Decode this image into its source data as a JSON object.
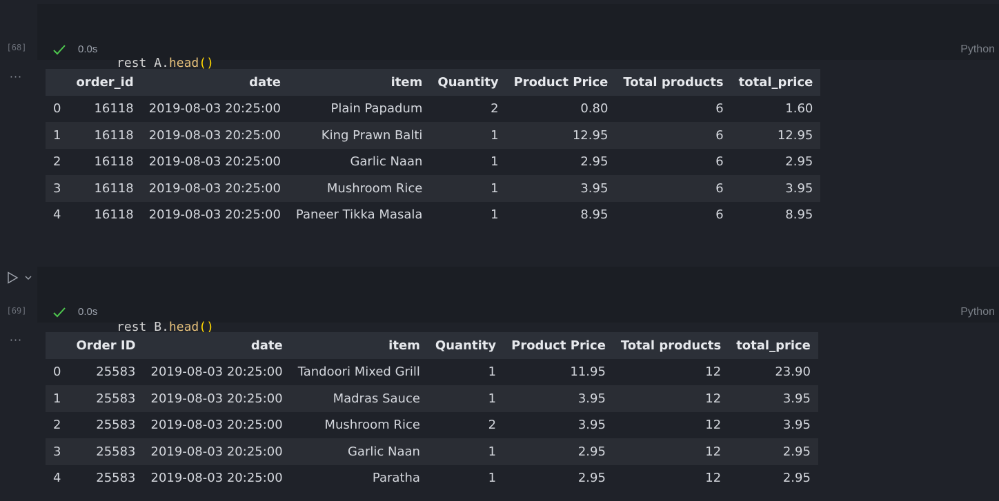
{
  "cells": [
    {
      "exec_count": "[68]",
      "code": {
        "var": "rest_A",
        "dot": ".",
        "fn": "head",
        "parens": "()"
      },
      "exec_time": "0.0s",
      "language": "Python",
      "output_more": "···",
      "table": {
        "columns": [
          "",
          "order_id",
          "date",
          "item",
          "Quantity",
          "Product Price",
          "Total products",
          "total_price"
        ],
        "rows": [
          [
            "0",
            "16118",
            "2019-08-03 20:25:00",
            "Plain Papadum",
            "2",
            "0.80",
            "6",
            "1.60"
          ],
          [
            "1",
            "16118",
            "2019-08-03 20:25:00",
            "King Prawn Balti",
            "1",
            "12.95",
            "6",
            "12.95"
          ],
          [
            "2",
            "16118",
            "2019-08-03 20:25:00",
            "Garlic Naan",
            "1",
            "2.95",
            "6",
            "2.95"
          ],
          [
            "3",
            "16118",
            "2019-08-03 20:25:00",
            "Mushroom Rice",
            "1",
            "3.95",
            "6",
            "3.95"
          ],
          [
            "4",
            "16118",
            "2019-08-03 20:25:00",
            "Paneer Tikka Masala",
            "1",
            "8.95",
            "6",
            "8.95"
          ]
        ]
      }
    },
    {
      "exec_count": "[69]",
      "code": {
        "var": "rest_B",
        "dot": ".",
        "fn": "head",
        "parens": "()"
      },
      "exec_time": "0.0s",
      "language": "Python",
      "output_more": "···",
      "table": {
        "columns": [
          "",
          "Order ID",
          "date",
          "item",
          "Quantity",
          "Product Price",
          "Total products",
          "total_price"
        ],
        "rows": [
          [
            "0",
            "25583",
            "2019-08-03 20:25:00",
            "Tandoori Mixed Grill",
            "1",
            "11.95",
            "12",
            "23.90"
          ],
          [
            "1",
            "25583",
            "2019-08-03 20:25:00",
            "Madras Sauce",
            "1",
            "3.95",
            "12",
            "3.95"
          ],
          [
            "2",
            "25583",
            "2019-08-03 20:25:00",
            "Mushroom Rice",
            "2",
            "3.95",
            "12",
            "3.95"
          ],
          [
            "3",
            "25583",
            "2019-08-03 20:25:00",
            "Garlic Naan",
            "1",
            "2.95",
            "12",
            "2.95"
          ],
          [
            "4",
            "25583",
            "2019-08-03 20:25:00",
            "Paratha",
            "1",
            "2.95",
            "12",
            "2.95"
          ]
        ]
      }
    }
  ],
  "colors": {
    "success_check": "#4ec94e",
    "background": "#1f2229",
    "editor_bg": "#1b1e24"
  },
  "icons": {
    "run": "play-icon",
    "expand": "chevron-down-icon",
    "status": "check-icon"
  }
}
